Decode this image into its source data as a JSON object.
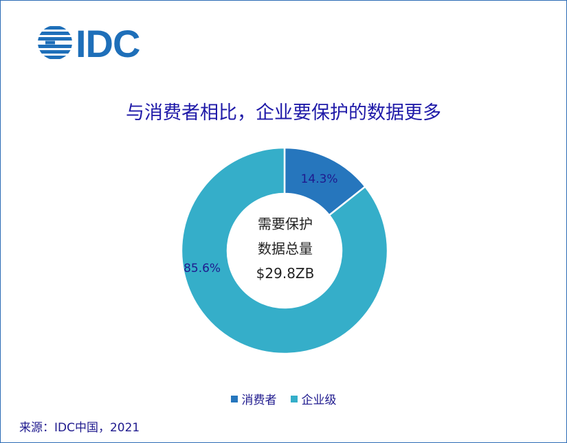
{
  "logo": {
    "text": "IDC"
  },
  "title": "与消费者相比，企业要保护的数据更多",
  "chart_data": {
    "type": "pie",
    "donut": true,
    "categories": [
      "消费者",
      "企业级"
    ],
    "values": [
      14.3,
      85.6
    ],
    "data_labels": [
      "14.3%",
      "85.6%"
    ],
    "colors": [
      "#2676bd",
      "#35aec9"
    ],
    "center_text": [
      "需要保护",
      "数据总量",
      "$29.8ZB"
    ],
    "legend_position": "bottom"
  },
  "source": "来源：IDC中国，2021"
}
